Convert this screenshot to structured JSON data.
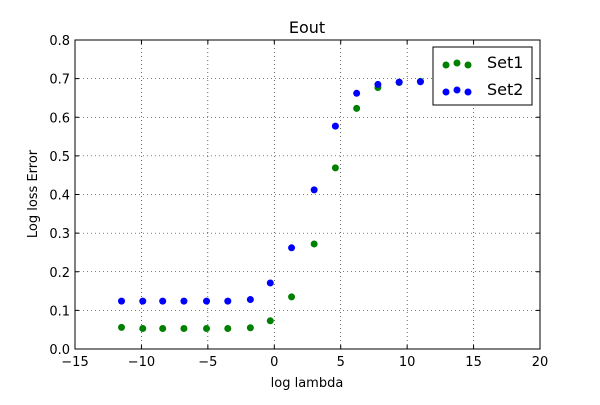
{
  "chart_data": {
    "type": "scatter",
    "title": "Eout",
    "xlabel": "log lambda",
    "ylabel": "Log loss Error",
    "xlim": [
      -15,
      20
    ],
    "ylim": [
      0.0,
      0.8
    ],
    "xticks": [
      -15,
      -10,
      -5,
      0,
      5,
      10,
      15,
      20
    ],
    "xtick_labels": [
      "−15",
      "−10",
      "−5",
      "0",
      "5",
      "10",
      "15",
      "20"
    ],
    "yticks": [
      0.0,
      0.1,
      0.2,
      0.3,
      0.4,
      0.5,
      0.6,
      0.7,
      0.8
    ],
    "ytick_labels": [
      "0.0",
      "0.1",
      "0.2",
      "0.3",
      "0.4",
      "0.5",
      "0.6",
      "0.7",
      "0.8"
    ],
    "grid": true,
    "legend_position": "top-right",
    "series": [
      {
        "name": "Set1",
        "color": "#008000",
        "x": [
          -11.5,
          -9.9,
          -8.4,
          -6.8,
          -5.1,
          -3.5,
          -1.8,
          -0.3,
          1.3,
          3.0,
          4.6,
          6.2,
          7.8,
          9.4,
          11.0
        ],
        "y": [
          0.056,
          0.053,
          0.053,
          0.053,
          0.053,
          0.053,
          0.055,
          0.073,
          0.135,
          0.272,
          0.469,
          0.623,
          0.677,
          0.69,
          0.693
        ]
      },
      {
        "name": "Set2",
        "color": "#0000ff",
        "x": [
          -11.5,
          -9.9,
          -8.4,
          -6.8,
          -5.1,
          -3.5,
          -1.8,
          -0.3,
          1.3,
          3.0,
          4.6,
          6.2,
          7.8,
          9.4,
          11.0
        ],
        "y": [
          0.124,
          0.124,
          0.124,
          0.124,
          0.124,
          0.124,
          0.128,
          0.171,
          0.262,
          0.412,
          0.577,
          0.662,
          0.685,
          0.691,
          0.692
        ]
      }
    ]
  }
}
